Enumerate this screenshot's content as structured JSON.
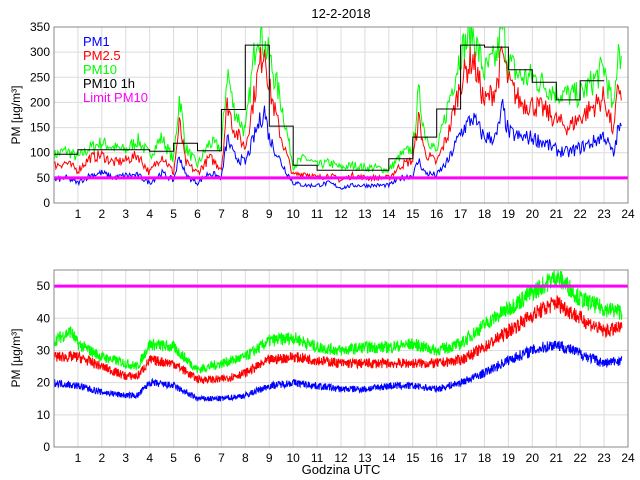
{
  "chart_data": [
    {
      "type": "line",
      "title": "12-2-2018",
      "xlabel": "",
      "ylabel": "PM [µg/m³]",
      "xlim": [
        0,
        24
      ],
      "ylim": [
        0,
        350
      ],
      "xticks": [
        1,
        2,
        3,
        4,
        5,
        6,
        7,
        8,
        9,
        10,
        11,
        12,
        13,
        14,
        15,
        16,
        17,
        18,
        19,
        20,
        21,
        22,
        23,
        24
      ],
      "yticks": [
        0,
        50,
        100,
        150,
        200,
        250,
        300,
        350
      ],
      "grid": true,
      "legend_placement": "top-left",
      "legend": [
        "PM1",
        "PM2.5",
        "PM10",
        "PM10 1h",
        "Limit PM10"
      ],
      "series": [
        {
          "name": "PM10",
          "color": "#00ff00",
          "x": [
            0,
            0.5,
            1,
            1.5,
            2,
            2.5,
            3,
            3.5,
            4,
            4.5,
            5,
            5.25,
            5.5,
            6,
            6.5,
            7,
            7.25,
            7.5,
            8,
            8.5,
            9,
            9.5,
            10,
            10.5,
            11,
            11.5,
            12,
            12.5,
            13,
            13.5,
            14,
            14.5,
            15,
            15.25,
            15.5,
            16,
            16.5,
            17,
            17.5,
            18,
            18.5,
            18.75,
            19,
            19.5,
            20,
            20.5,
            21,
            21.5,
            22,
            22.5,
            23,
            23.4,
            23.6,
            23.75
          ],
          "y": [
            95,
            105,
            90,
            110,
            120,
            110,
            105,
            125,
            95,
            130,
            85,
            215,
            110,
            75,
            120,
            110,
            265,
            190,
            140,
            350,
            290,
            200,
            75,
            90,
            75,
            80,
            70,
            75,
            70,
            70,
            65,
            95,
            110,
            220,
            140,
            100,
            200,
            300,
            340,
            260,
            290,
            350,
            280,
            250,
            250,
            235,
            220,
            215,
            215,
            240,
            270,
            180,
            320,
            280
          ]
        },
        {
          "name": "PM2.5",
          "color": "#ff0000",
          "x": [
            0,
            0.5,
            1,
            1.5,
            2,
            2.5,
            3,
            3.5,
            4,
            4.5,
            5,
            5.25,
            5.5,
            6,
            6.5,
            7,
            7.25,
            7.5,
            8,
            8.5,
            8.8,
            9,
            9.5,
            10,
            10.5,
            11,
            11.5,
            12,
            12.5,
            13,
            13.5,
            14,
            14.5,
            15,
            15.25,
            15.5,
            16,
            16.5,
            17,
            17.5,
            18,
            18.5,
            18.75,
            19,
            19.5,
            20,
            20.5,
            21,
            21.5,
            22,
            22.5,
            23,
            23.4,
            23.6,
            23.75
          ],
          "y": [
            75,
            80,
            65,
            90,
            95,
            80,
            85,
            95,
            60,
            95,
            60,
            160,
            80,
            60,
            90,
            70,
            200,
            150,
            110,
            250,
            315,
            230,
            130,
            55,
            60,
            50,
            55,
            45,
            55,
            50,
            50,
            50,
            75,
            85,
            170,
            100,
            80,
            140,
            240,
            290,
            200,
            230,
            300,
            240,
            200,
            195,
            185,
            165,
            150,
            170,
            190,
            210,
            140,
            235,
            215
          ]
        },
        {
          "name": "PM1",
          "color": "#0000ff",
          "x": [
            0,
            0.5,
            1,
            1.5,
            2,
            2.5,
            3,
            3.5,
            4,
            4.5,
            5,
            5.25,
            5.5,
            6,
            6.5,
            7,
            7.25,
            7.5,
            8,
            8.5,
            8.8,
            9,
            9.5,
            10,
            10.5,
            11,
            11.5,
            12,
            12.5,
            13,
            13.5,
            14,
            14.5,
            15,
            15.25,
            15.5,
            16,
            16.5,
            17,
            17.5,
            18,
            18.5,
            18.75,
            19,
            19.5,
            20,
            20.5,
            21,
            21.5,
            22,
            22.5,
            23,
            23.4,
            23.6,
            23.75
          ],
          "y": [
            45,
            50,
            40,
            55,
            60,
            50,
            55,
            55,
            40,
            60,
            45,
            95,
            55,
            40,
            60,
            50,
            130,
            95,
            80,
            150,
            185,
            130,
            80,
            40,
            35,
            35,
            40,
            30,
            35,
            35,
            35,
            35,
            50,
            55,
            85,
            60,
            55,
            85,
            140,
            170,
            130,
            130,
            190,
            140,
            130,
            130,
            120,
            105,
            100,
            110,
            120,
            135,
            95,
            150,
            145
          ]
        },
        {
          "name": "PM10 1h",
          "color": "#000000",
          "step": true,
          "x": [
            0,
            1,
            2,
            3,
            4,
            5,
            6,
            7,
            8,
            9,
            10,
            11,
            12,
            13,
            14,
            15,
            16,
            17,
            18,
            19,
            20,
            21,
            22
          ],
          "y": [
            97,
            106,
            106,
            106,
            103,
            119,
            104,
            186,
            314,
            153,
            75,
            65,
            65,
            65,
            88,
            131,
            187,
            314,
            310,
            265,
            240,
            205,
            243
          ]
        },
        {
          "name": "Limit PM10",
          "color": "#ff00ff",
          "x": [
            0,
            24
          ],
          "y": [
            50,
            50
          ]
        }
      ]
    },
    {
      "type": "line",
      "title": "",
      "xlabel": "Godzina UTC",
      "ylabel": "PM [µg/m³]",
      "xlim": [
        0,
        24
      ],
      "ylim": [
        0,
        55
      ],
      "xticks": [
        1,
        2,
        3,
        4,
        5,
        6,
        7,
        8,
        9,
        10,
        11,
        12,
        13,
        14,
        15,
        16,
        17,
        18,
        19,
        20,
        21,
        22,
        23,
        24
      ],
      "yticks": [
        0,
        10,
        20,
        30,
        40,
        50
      ],
      "grid": true,
      "series": [
        {
          "name": "PM10",
          "color": "#00ff00",
          "x": [
            0,
            0.7,
            1,
            2,
            3,
            3.5,
            4,
            5,
            6,
            7,
            8,
            9,
            10,
            11,
            12,
            13,
            14,
            15,
            16,
            17,
            18,
            19,
            20,
            21,
            21.5,
            22,
            23,
            23.75
          ],
          "y": [
            33,
            36,
            32,
            28,
            26,
            25,
            32,
            31,
            24,
            26,
            28,
            33,
            34,
            31,
            30,
            31,
            31,
            32,
            30,
            32,
            38,
            43,
            48,
            53,
            50,
            46,
            43,
            42
          ]
        },
        {
          "name": "PM2.5",
          "color": "#ff0000",
          "x": [
            0,
            1,
            2,
            3,
            3.5,
            4,
            5,
            6,
            7,
            8,
            9,
            10,
            11,
            12,
            13,
            14,
            15,
            16,
            17,
            18,
            19,
            20,
            21,
            22,
            23,
            23.75
          ],
          "y": [
            28,
            28,
            25,
            22,
            22,
            27,
            26,
            21,
            21,
            23,
            27,
            28,
            27,
            26,
            26,
            26,
            26,
            26,
            27,
            31,
            36,
            41,
            45,
            40,
            36,
            37
          ]
        },
        {
          "name": "PM1",
          "color": "#0000ff",
          "x": [
            0,
            1,
            2,
            3,
            3.5,
            4,
            5,
            6,
            7,
            8,
            9,
            10,
            11,
            12,
            13,
            14,
            15,
            16,
            17,
            18,
            19,
            20,
            21,
            22,
            23,
            23.75
          ],
          "y": [
            20,
            19,
            17,
            16,
            16,
            20,
            19,
            15,
            15,
            16,
            19,
            20,
            19,
            18,
            18,
            19,
            19,
            18,
            20,
            23,
            27,
            30,
            32,
            29,
            26,
            27
          ]
        },
        {
          "name": "Limit PM10",
          "color": "#ff00ff",
          "x": [
            0,
            24
          ],
          "y": [
            50,
            50
          ]
        }
      ]
    }
  ]
}
